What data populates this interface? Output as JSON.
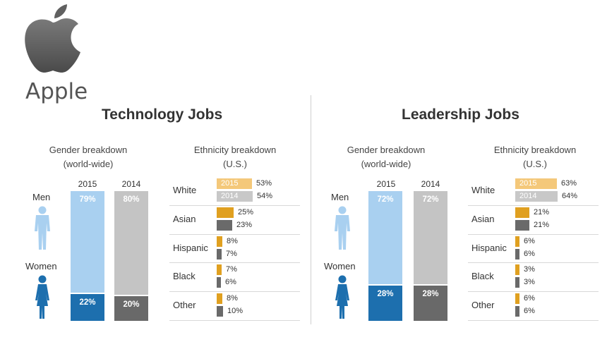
{
  "brand": {
    "name": "Apple",
    "logo": "apple-logo"
  },
  "colors": {
    "men_2015": "#a9d0f0",
    "women_2015": "#1d6fae",
    "men_2014": "#c4c4c4",
    "women_2014": "#696969",
    "eth_2015": "#e0a020",
    "eth_2015_light": "#f4c87a",
    "eth_2014": "#6a6a6a",
    "eth_2014_light": "#c8c8c8",
    "person_men": "#a9d0f0",
    "person_women": "#1d6fae"
  },
  "chart_data": [
    {
      "type": "bar",
      "title": "Technology Jobs",
      "subtitle": "Gender breakdown (world-wide)",
      "subtitle_lines": [
        "Gender breakdown",
        "(world-wide)"
      ],
      "categories": [
        "2015",
        "2014"
      ],
      "row_labels": [
        "Men",
        "Women"
      ],
      "series": [
        {
          "name": "Men",
          "values": [
            79,
            80
          ],
          "labels": [
            "79%",
            "80%"
          ]
        },
        {
          "name": "Women",
          "values": [
            22,
            20
          ],
          "labels": [
            "22%",
            "20%"
          ]
        }
      ]
    },
    {
      "type": "bar",
      "title": "Technology Jobs",
      "subtitle": "Ethnicity breakdown (U.S.)",
      "subtitle_lines": [
        "Ethnicity breakdown",
        "(U.S.)"
      ],
      "categories": [
        "White",
        "Asian",
        "Hispanic",
        "Black",
        "Other"
      ],
      "series": [
        {
          "name": "2015",
          "values": [
            53,
            25,
            8,
            7,
            8
          ],
          "labels": [
            "53%",
            "25%",
            "8%",
            "7%",
            "8%"
          ]
        },
        {
          "name": "2014",
          "values": [
            54,
            23,
            7,
            6,
            10
          ],
          "labels": [
            "54%",
            "23%",
            "7%",
            "6%",
            "10%"
          ]
        }
      ]
    },
    {
      "type": "bar",
      "title": "Leadership Jobs",
      "subtitle": "Gender breakdown (world-wide)",
      "subtitle_lines": [
        "Gender breakdown",
        "(world-wide)"
      ],
      "categories": [
        "2015",
        "2014"
      ],
      "row_labels": [
        "Men",
        "Women"
      ],
      "series": [
        {
          "name": "Men",
          "values": [
            72,
            72
          ],
          "labels": [
            "72%",
            "72%"
          ]
        },
        {
          "name": "Women",
          "values": [
            28,
            28
          ],
          "labels": [
            "28%",
            "28%"
          ]
        }
      ]
    },
    {
      "type": "bar",
      "title": "Leadership Jobs",
      "subtitle": "Ethnicity breakdown (U.S.)",
      "subtitle_lines": [
        "Ethnicity breakdown",
        "(U.S.)"
      ],
      "categories": [
        "White",
        "Asian",
        "Hispanic",
        "Black",
        "Other"
      ],
      "series": [
        {
          "name": "2015",
          "values": [
            63,
            21,
            6,
            3,
            6
          ],
          "labels": [
            "63%",
            "21%",
            "6%",
            "3%",
            "6%"
          ]
        },
        {
          "name": "2014",
          "values": [
            64,
            21,
            6,
            3,
            6
          ],
          "labels": [
            "64%",
            "21%",
            "6%",
            "3%",
            "6%"
          ]
        }
      ]
    }
  ]
}
